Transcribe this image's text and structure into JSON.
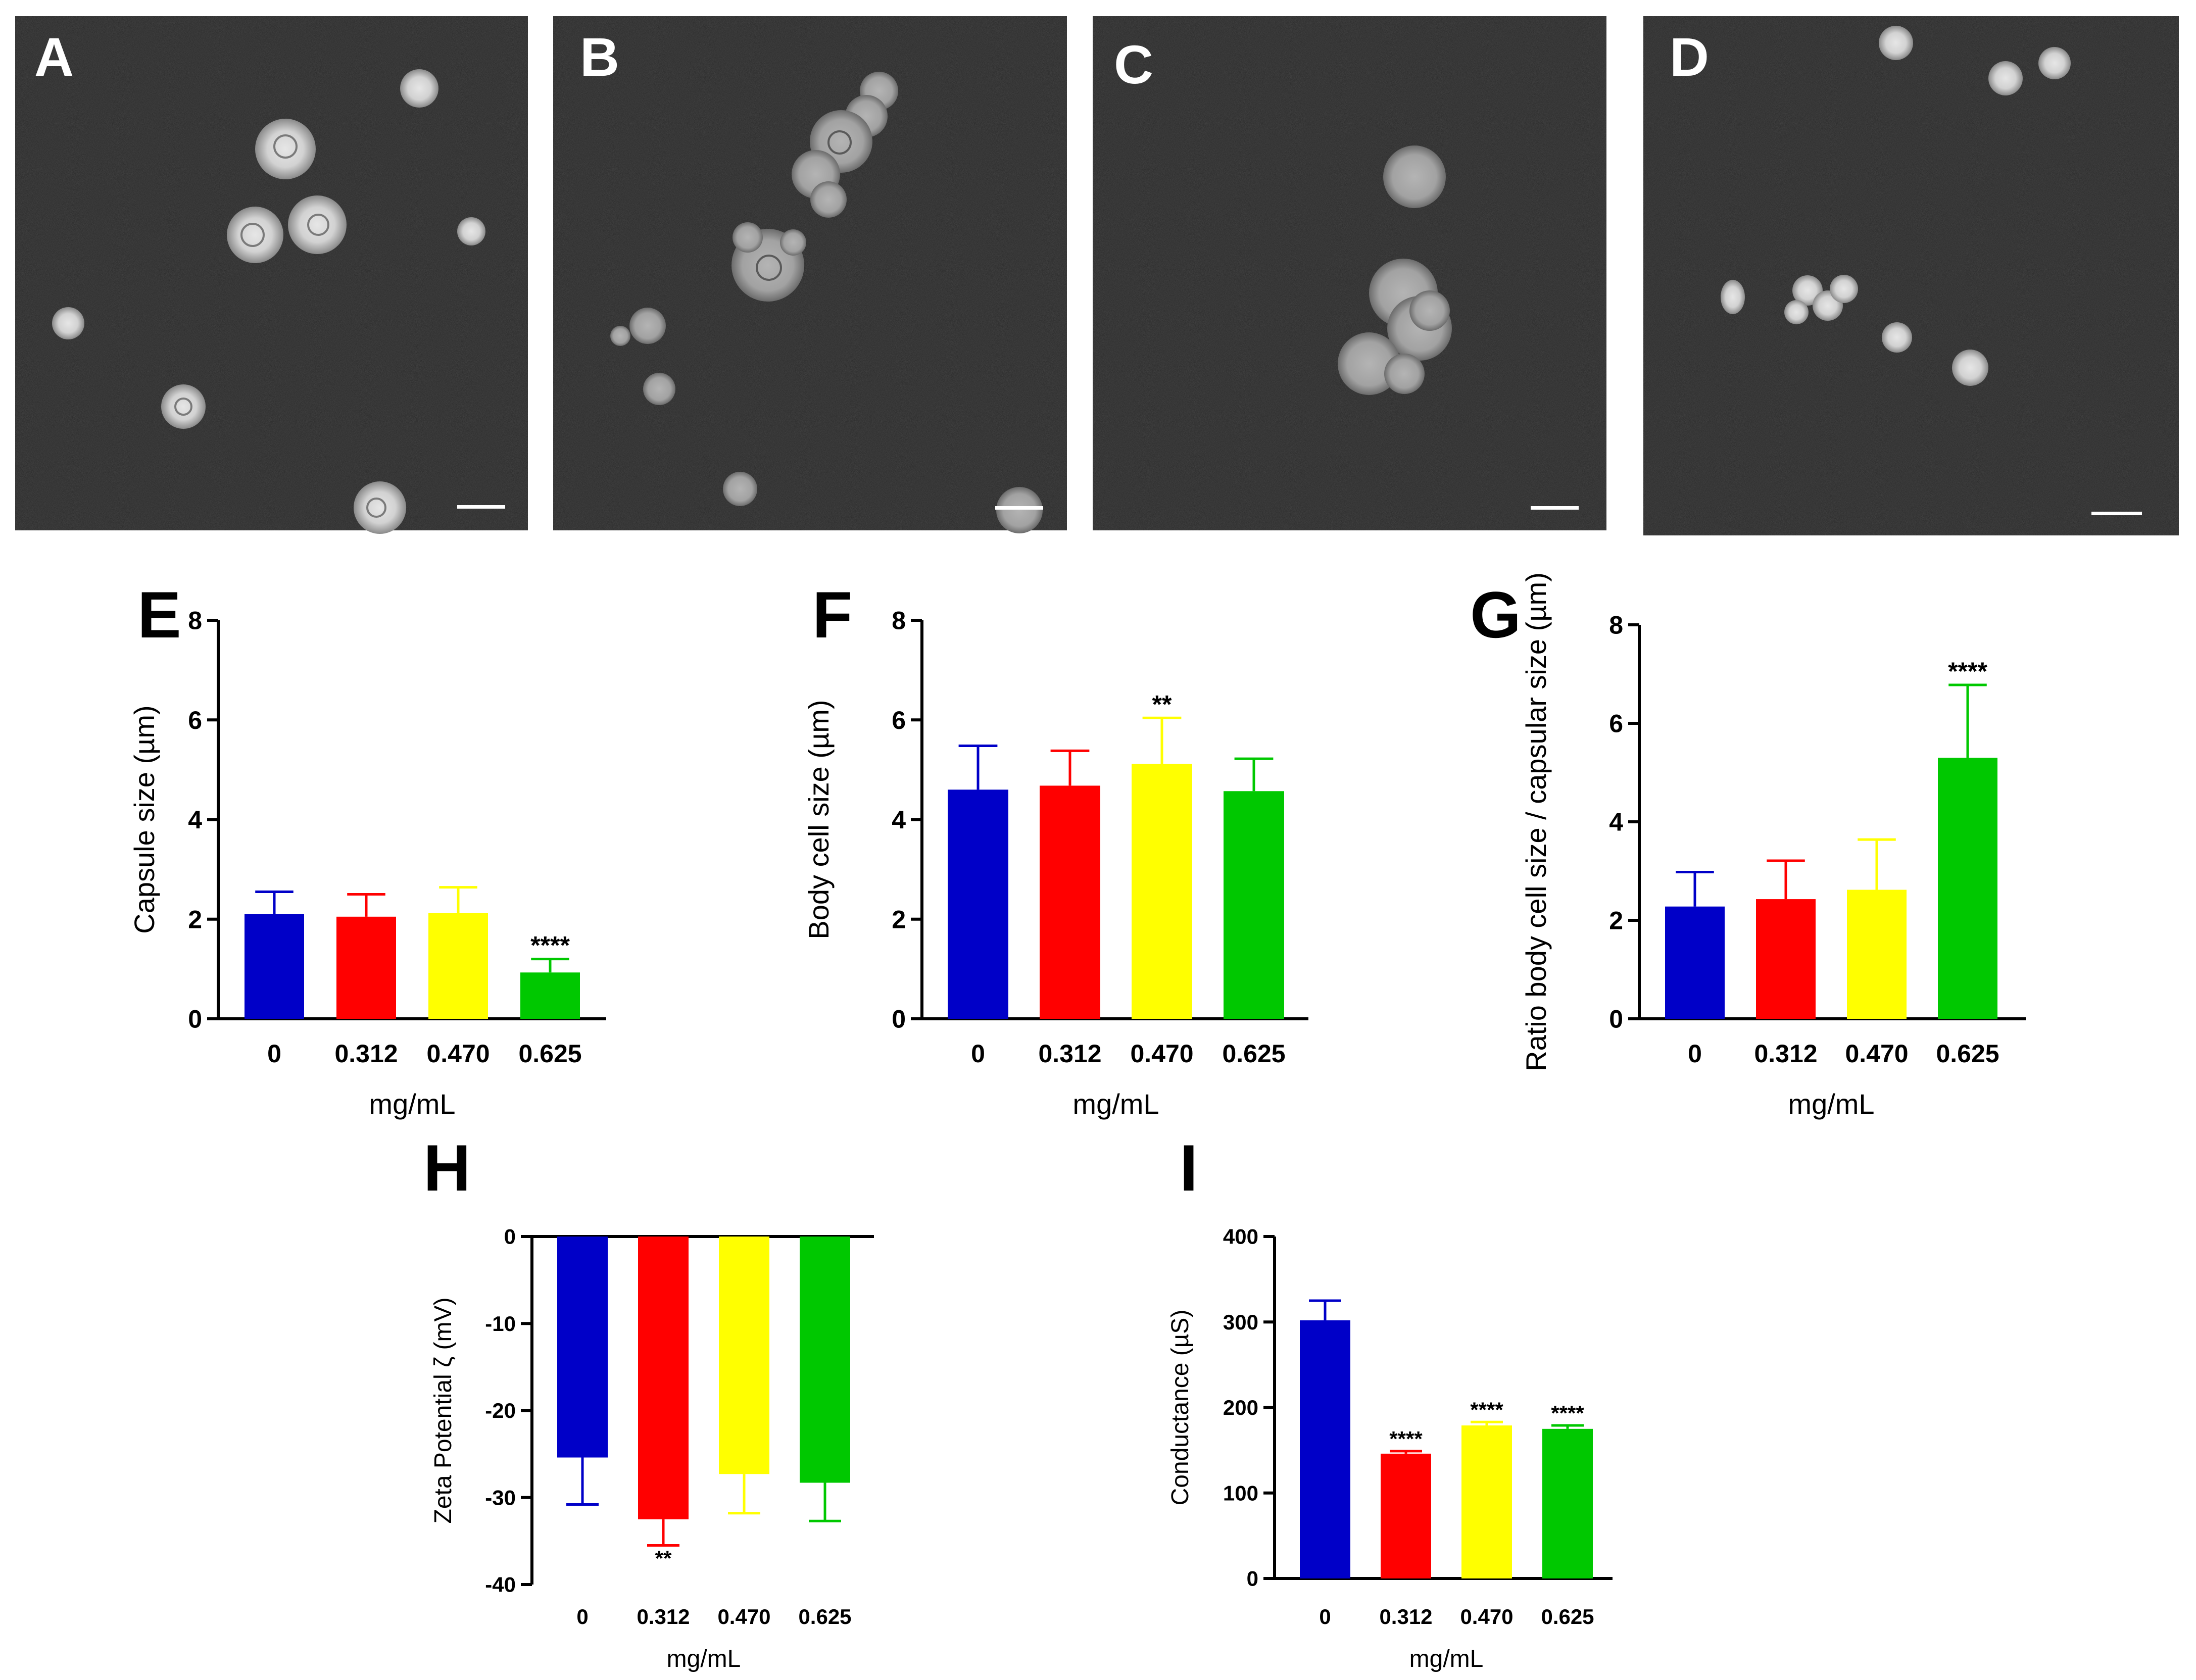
{
  "micrographs": [
    {
      "panel": "A"
    },
    {
      "panel": "B"
    },
    {
      "panel": "C"
    },
    {
      "panel": "D"
    }
  ],
  "chart_data": [
    {
      "panel": "E",
      "type": "bar",
      "categories": [
        "0",
        "0.312",
        "0.470",
        "0.625"
      ],
      "values": [
        2.1,
        2.05,
        2.12,
        0.93
      ],
      "errors": [
        0.45,
        0.45,
        0.52,
        0.27
      ],
      "significance": [
        "",
        "",
        "",
        "****"
      ],
      "colors": [
        "#0000c8",
        "#ff0000",
        "#ffff00",
        "#00c800"
      ],
      "ylabel": "Capsule size (µm)",
      "xlabel": "mg/mL",
      "ylim": [
        0,
        8
      ],
      "yticks": [
        "0",
        "2",
        "4",
        "6",
        "8"
      ]
    },
    {
      "panel": "F",
      "type": "bar",
      "categories": [
        "0",
        "0.312",
        "0.470",
        "0.625"
      ],
      "values": [
        4.6,
        4.68,
        5.12,
        4.57
      ],
      "errors": [
        0.88,
        0.7,
        0.92,
        0.65
      ],
      "significance": [
        "",
        "",
        "**",
        ""
      ],
      "colors": [
        "#0000c8",
        "#ff0000",
        "#ffff00",
        "#00c800"
      ],
      "ylabel": "Body cell size (µm)",
      "xlabel": "mg/mL",
      "ylim": [
        0,
        8
      ],
      "yticks": [
        "0",
        "2",
        "4",
        "6",
        "8"
      ]
    },
    {
      "panel": "G",
      "type": "bar",
      "categories": [
        "0",
        "0.312",
        "0.470",
        "0.625"
      ],
      "values": [
        2.28,
        2.43,
        2.62,
        5.3
      ],
      "errors": [
        0.7,
        0.78,
        1.02,
        1.48
      ],
      "significance": [
        "",
        "",
        "",
        "****"
      ],
      "colors": [
        "#0000c8",
        "#ff0000",
        "#ffff00",
        "#00c800"
      ],
      "ylabel": "Ratio body cell size / capsular size (µm)",
      "xlabel": "mg/mL",
      "ylim": [
        0,
        8
      ],
      "yticks": [
        "0",
        "2",
        "4",
        "6",
        "8"
      ]
    },
    {
      "panel": "H",
      "type": "bar",
      "categories": [
        "0",
        "0.312",
        "0.470",
        "0.625"
      ],
      "values": [
        -25.4,
        -32.5,
        -27.3,
        -28.3
      ],
      "errors": [
        5.4,
        3.0,
        4.5,
        4.4
      ],
      "significance": [
        "",
        "**",
        "",
        ""
      ],
      "colors": [
        "#0000c8",
        "#ff0000",
        "#ffff00",
        "#00c800"
      ],
      "ylabel": "Zeta Potential ζ (mV)",
      "xlabel": "mg/mL",
      "ylim": [
        -40,
        0
      ],
      "yticks": [
        "0",
        "-10",
        "-20",
        "-30",
        "-40"
      ]
    },
    {
      "panel": "I",
      "type": "bar",
      "categories": [
        "0",
        "0.312",
        "0.470",
        "0.625"
      ],
      "values": [
        302,
        146,
        179,
        175
      ],
      "errors": [
        23,
        3,
        4,
        4
      ],
      "significance": [
        "",
        "****",
        "****",
        "****"
      ],
      "colors": [
        "#0000c8",
        "#ff0000",
        "#ffff00",
        "#00c800"
      ],
      "ylabel": "Conductance (µS)",
      "xlabel": "mg/mL",
      "ylim": [
        0,
        400
      ],
      "yticks": [
        "0",
        "100",
        "200",
        "300",
        "400"
      ]
    }
  ]
}
